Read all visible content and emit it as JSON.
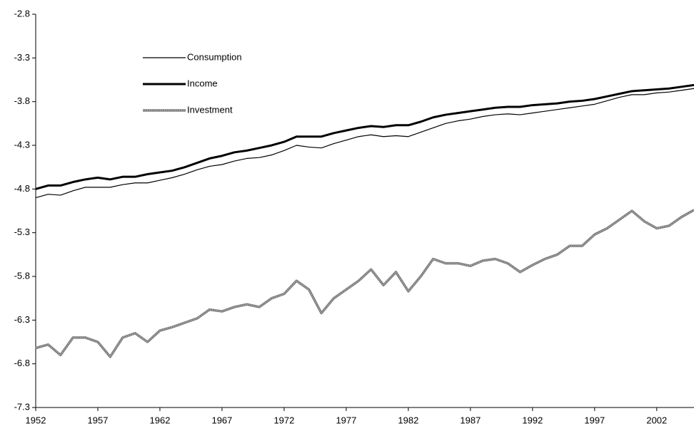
{
  "chart_data": {
    "type": "line",
    "x": [
      1952,
      1953,
      1954,
      1955,
      1956,
      1957,
      1958,
      1959,
      1960,
      1961,
      1962,
      1963,
      1964,
      1965,
      1966,
      1967,
      1968,
      1969,
      1970,
      1971,
      1972,
      1973,
      1974,
      1975,
      1976,
      1977,
      1978,
      1979,
      1980,
      1981,
      1982,
      1983,
      1984,
      1985,
      1986,
      1987,
      1988,
      1989,
      1990,
      1991,
      1992,
      1993,
      1994,
      1995,
      1996,
      1997,
      1998,
      1999,
      2000,
      2001,
      2002,
      2003,
      2004,
      2005
    ],
    "series": [
      {
        "name": "Consumption",
        "color": "#000000",
        "values": [
          -4.9,
          -4.86,
          -4.87,
          -4.82,
          -4.78,
          -4.78,
          -4.78,
          -4.75,
          -4.73,
          -4.73,
          -4.7,
          -4.67,
          -4.63,
          -4.58,
          -4.54,
          -4.52,
          -4.48,
          -4.45,
          -4.44,
          -4.41,
          -4.36,
          -4.3,
          -4.32,
          -4.33,
          -4.28,
          -4.24,
          -4.2,
          -4.18,
          -4.2,
          -4.19,
          -4.2,
          -4.15,
          -4.1,
          -4.05,
          -4.02,
          -4.0,
          -3.97,
          -3.95,
          -3.94,
          -3.95,
          -3.93,
          -3.91,
          -3.89,
          -3.87,
          -3.85,
          -3.83,
          -3.79,
          -3.75,
          -3.72,
          -3.72,
          -3.7,
          -3.69,
          -3.67,
          -3.65
        ]
      },
      {
        "name": "Income",
        "color": "#000000",
        "values": [
          -4.8,
          -4.76,
          -4.76,
          -4.72,
          -4.69,
          -4.67,
          -4.69,
          -4.66,
          -4.66,
          -4.63,
          -4.61,
          -4.59,
          -4.55,
          -4.5,
          -4.45,
          -4.42,
          -4.38,
          -4.36,
          -4.33,
          -4.3,
          -4.26,
          -4.2,
          -4.2,
          -4.2,
          -4.16,
          -4.13,
          -4.1,
          -4.08,
          -4.09,
          -4.07,
          -4.07,
          -4.03,
          -3.98,
          -3.95,
          -3.93,
          -3.91,
          -3.89,
          -3.87,
          -3.86,
          -3.86,
          -3.84,
          -3.83,
          -3.82,
          -3.8,
          -3.79,
          -3.77,
          -3.74,
          -3.71,
          -3.68,
          -3.67,
          -3.66,
          -3.65,
          -3.63,
          -3.61
        ]
      },
      {
        "name": "Investment",
        "color": "#808080",
        "values": [
          -6.62,
          -6.58,
          -6.7,
          -6.5,
          -6.5,
          -6.55,
          -6.72,
          -6.5,
          -6.45,
          -6.55,
          -6.42,
          -6.38,
          -6.33,
          -6.28,
          -6.18,
          -6.2,
          -6.15,
          -6.12,
          -6.15,
          -6.05,
          -6.0,
          -5.85,
          -5.95,
          -6.22,
          -6.05,
          -5.95,
          -5.85,
          -5.72,
          -5.9,
          -5.75,
          -5.97,
          -5.8,
          -5.6,
          -5.65,
          -5.65,
          -5.68,
          -5.62,
          -5.6,
          -5.65,
          -5.75,
          -5.67,
          -5.6,
          -5.55,
          -5.45,
          -5.45,
          -5.32,
          -5.25,
          -5.15,
          -5.05,
          -5.17,
          -5.25,
          -5.22,
          -5.12,
          -5.04
        ]
      }
    ],
    "xlim": [
      1952,
      2005
    ],
    "xticks": [
      1952,
      1957,
      1962,
      1967,
      1972,
      1977,
      1982,
      1987,
      1992,
      1997,
      2002
    ],
    "ylim": [
      -7.3,
      -2.8
    ],
    "yticks": [
      -2.8,
      -3.3,
      -3.8,
      -4.3,
      -4.8,
      -5.3,
      -5.8,
      -6.3,
      -6.8,
      -7.3
    ],
    "grid": false,
    "legend": "upper left"
  }
}
